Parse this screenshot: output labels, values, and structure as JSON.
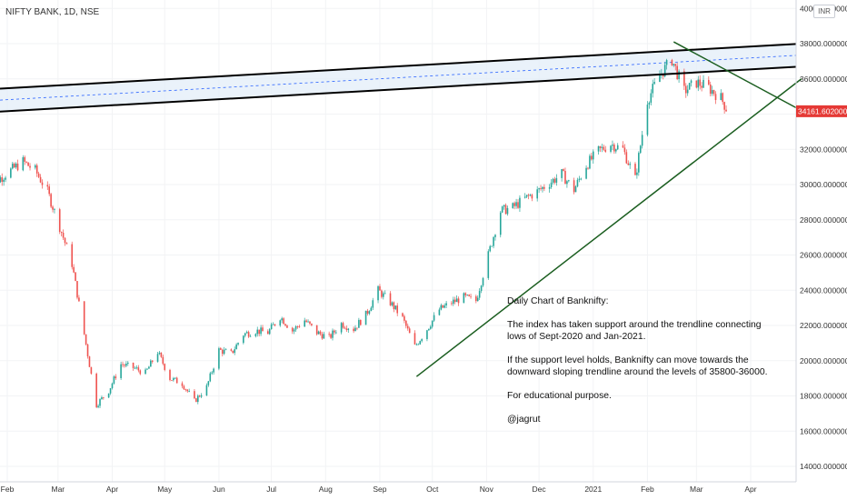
{
  "symbol": "NIFTY BANK, 1D, NSE",
  "currency": "INR",
  "annotation": {
    "heading": "Daily Chart of Banknifty:",
    "line1": "The index has taken support around the trendline connecting lows of Sept-2020 and Jan-2021.",
    "line2": "If the support level holds, Banknifty can move towards the downward sloping trendline around the levels of 35800-36000.",
    "line3": "For educational purpose.",
    "author": "@jagrut"
  },
  "colors": {
    "up": "#26a69a",
    "down": "#ef5350",
    "trendline": "#1b5e20",
    "channel": "#000000",
    "channel_fill": "#e3edf8",
    "midline": "#2962ff",
    "last_price": "#e53935"
  },
  "chart_data": {
    "type": "candlestick",
    "title": "NIFTY BANK, 1D, NSE",
    "ylim": [
      13200,
      40600
    ],
    "y_scale": "linear",
    "y_ticks": [
      14000,
      16000,
      18000,
      20000,
      22000,
      24000,
      26000,
      28000,
      30000,
      32000,
      34000,
      36000,
      38000,
      40000
    ],
    "y_tick_labels": [
      "14000.000000",
      "16000.000000",
      "18000.000000",
      "20000.000000",
      "22000.000000",
      "24000.000000",
      "26000.000000",
      "28000.000000",
      "30000.000000",
      "32000.000000",
      "34000.000000",
      "36000.000000",
      "38000.000000",
      "40000.000000"
    ],
    "x_ticks": [
      {
        "label": "Feb",
        "date": "2020-02-01"
      },
      {
        "label": "Mar",
        "date": "2020-03-01"
      },
      {
        "label": "Apr",
        "date": "2020-04-01"
      },
      {
        "label": "May",
        "date": "2020-05-01"
      },
      {
        "label": "Jun",
        "date": "2020-06-01"
      },
      {
        "label": "Jul",
        "date": "2020-07-01"
      },
      {
        "label": "Aug",
        "date": "2020-08-01"
      },
      {
        "label": "Sep",
        "date": "2020-09-01"
      },
      {
        "label": "Oct",
        "date": "2020-10-01"
      },
      {
        "label": "Nov",
        "date": "2020-11-01"
      },
      {
        "label": "Dec",
        "date": "2020-12-01"
      },
      {
        "label": "2021",
        "date": "2021-01-01"
      },
      {
        "label": "Feb",
        "date": "2021-02-01"
      },
      {
        "label": "Mar",
        "date": "2021-03-01"
      },
      {
        "label": "Apr",
        "date": "2021-04-01"
      }
    ],
    "price_path": [
      {
        "date": "2020-01-20",
        "close": 31000
      },
      {
        "date": "2020-01-27",
        "close": 30300
      },
      {
        "date": "2020-02-03",
        "close": 30800
      },
      {
        "date": "2020-02-10",
        "close": 31300
      },
      {
        "date": "2020-02-17",
        "close": 30800
      },
      {
        "date": "2020-02-24",
        "close": 29600
      },
      {
        "date": "2020-03-02",
        "close": 27600
      },
      {
        "date": "2020-03-09",
        "close": 25500
      },
      {
        "date": "2020-03-16",
        "close": 21500
      },
      {
        "date": "2020-03-23",
        "close": 17500
      },
      {
        "date": "2020-03-30",
        "close": 18300
      },
      {
        "date": "2020-04-06",
        "close": 19800
      },
      {
        "date": "2020-04-13",
        "close": 19600
      },
      {
        "date": "2020-04-20",
        "close": 19300
      },
      {
        "date": "2020-04-27",
        "close": 20500
      },
      {
        "date": "2020-05-04",
        "close": 19000
      },
      {
        "date": "2020-05-11",
        "close": 18700
      },
      {
        "date": "2020-05-18",
        "close": 17700
      },
      {
        "date": "2020-05-25",
        "close": 18500
      },
      {
        "date": "2020-06-01",
        "close": 20600
      },
      {
        "date": "2020-06-08",
        "close": 20400
      },
      {
        "date": "2020-06-15",
        "close": 21500
      },
      {
        "date": "2020-06-22",
        "close": 21700
      },
      {
        "date": "2020-06-29",
        "close": 21600
      },
      {
        "date": "2020-07-06",
        "close": 22500
      },
      {
        "date": "2020-07-13",
        "close": 21700
      },
      {
        "date": "2020-07-20",
        "close": 22300
      },
      {
        "date": "2020-07-27",
        "close": 21600
      },
      {
        "date": "2020-08-03",
        "close": 21300
      },
      {
        "date": "2020-08-10",
        "close": 22100
      },
      {
        "date": "2020-08-17",
        "close": 21800
      },
      {
        "date": "2020-08-24",
        "close": 22600
      },
      {
        "date": "2020-08-31",
        "close": 24000
      },
      {
        "date": "2020-09-07",
        "close": 23300
      },
      {
        "date": "2020-09-14",
        "close": 22400
      },
      {
        "date": "2020-09-21",
        "close": 20800
      },
      {
        "date": "2020-09-28",
        "close": 21800
      },
      {
        "date": "2020-10-05",
        "close": 22900
      },
      {
        "date": "2020-10-12",
        "close": 23300
      },
      {
        "date": "2020-10-19",
        "close": 23600
      },
      {
        "date": "2020-10-26",
        "close": 23400
      },
      {
        "date": "2020-11-02",
        "close": 26000
      },
      {
        "date": "2020-11-09",
        "close": 28500
      },
      {
        "date": "2020-11-16",
        "close": 28700
      },
      {
        "date": "2020-11-23",
        "close": 29200
      },
      {
        "date": "2020-11-30",
        "close": 29600
      },
      {
        "date": "2020-12-07",
        "close": 30100
      },
      {
        "date": "2020-12-14",
        "close": 30600
      },
      {
        "date": "2020-12-21",
        "close": 29700
      },
      {
        "date": "2020-12-28",
        "close": 31100
      },
      {
        "date": "2021-01-04",
        "close": 31900
      },
      {
        "date": "2021-01-11",
        "close": 32300
      },
      {
        "date": "2021-01-18",
        "close": 32000
      },
      {
        "date": "2021-01-25",
        "close": 30300
      },
      {
        "date": "2021-02-01",
        "close": 34800
      },
      {
        "date": "2021-02-08",
        "close": 36200
      },
      {
        "date": "2021-02-15",
        "close": 37100
      },
      {
        "date": "2021-02-22",
        "close": 35300
      },
      {
        "date": "2021-03-01",
        "close": 35800
      },
      {
        "date": "2021-03-08",
        "close": 35500
      },
      {
        "date": "2021-03-15",
        "close": 34900
      },
      {
        "date": "2021-03-19",
        "close": 34161.602
      }
    ],
    "last_price": 34161.602,
    "last_price_label": "34161.602000",
    "drawings": [
      {
        "name": "upper-channel-top",
        "from": {
          "date": "2020-01-20",
          "price": 35400
        },
        "to": {
          "date": "2021-04-30",
          "price": 38000
        }
      },
      {
        "name": "upper-channel-bottom",
        "from": {
          "date": "2020-01-20",
          "price": 34100
        },
        "to": {
          "date": "2021-04-30",
          "price": 36700
        }
      },
      {
        "name": "channel-midline",
        "from": {
          "date": "2020-01-20",
          "price": 34750
        },
        "to": {
          "date": "2021-04-30",
          "price": 37350
        }
      },
      {
        "name": "support-trendline",
        "from": {
          "date": "2020-09-22",
          "price": 19100
        },
        "to": {
          "date": "2021-04-30",
          "price": 36000
        }
      },
      {
        "name": "downward-trendline",
        "from": {
          "date": "2021-02-16",
          "price": 38100
        },
        "to": {
          "date": "2021-04-30",
          "price": 34200
        }
      }
    ]
  }
}
